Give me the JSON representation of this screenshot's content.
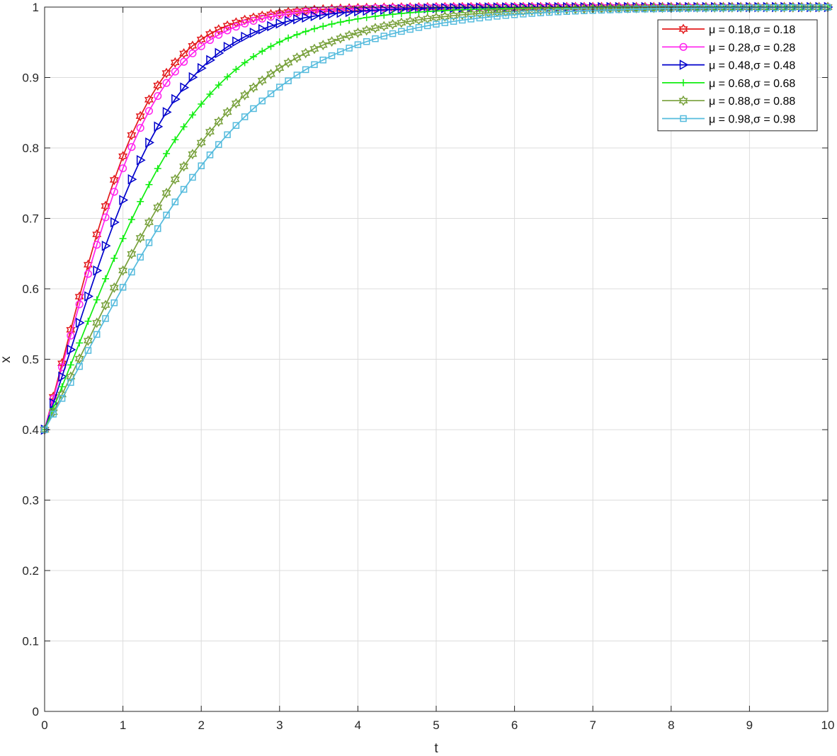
{
  "chart_data": {
    "type": "line",
    "title": "",
    "xlabel": "t",
    "ylabel": "x",
    "xlim": [
      0,
      10
    ],
    "ylim": [
      0,
      1
    ],
    "xticks": [
      0,
      1,
      2,
      3,
      4,
      5,
      6,
      7,
      8,
      9,
      10
    ],
    "yticks": [
      0,
      0.1,
      0.2,
      0.3,
      0.4,
      0.5,
      0.6,
      0.7,
      0.8,
      0.9,
      1
    ],
    "xtick_labels": [
      "0",
      "1",
      "2",
      "3",
      "4",
      "5",
      "6",
      "7",
      "8",
      "9",
      "10"
    ],
    "ytick_labels": [
      "0",
      "0.1",
      "0.2",
      "0.3",
      "0.4",
      "0.5",
      "0.6",
      "0.7",
      "0.8",
      "0.9",
      "1"
    ],
    "grid": true,
    "legend_position": "top-right",
    "x0": 0.4,
    "series": [
      {
        "name": "μ = 0.18,σ = 0.18",
        "color": "#e31a1c",
        "marker": "hexagram",
        "rate": 1.72
      },
      {
        "name": "μ = 0.28,σ = 0.28",
        "color": "#ff22ee",
        "marker": "circle",
        "rate": 1.62
      },
      {
        "name": "μ = 0.48,σ = 0.48",
        "color": "#0000cc",
        "marker": "triangle-right",
        "rate": 1.38
      },
      {
        "name": "μ = 0.68,σ = 0.68",
        "color": "#11ee11",
        "marker": "plus",
        "rate": 1.12
      },
      {
        "name": "μ = 0.88,σ = 0.88",
        "color": "#77a03a",
        "marker": "hexagram",
        "rate": 0.92
      },
      {
        "name": "μ = 0.98,σ = 0.98",
        "color": "#55bbdd",
        "marker": "square",
        "rate": 0.82
      }
    ]
  }
}
